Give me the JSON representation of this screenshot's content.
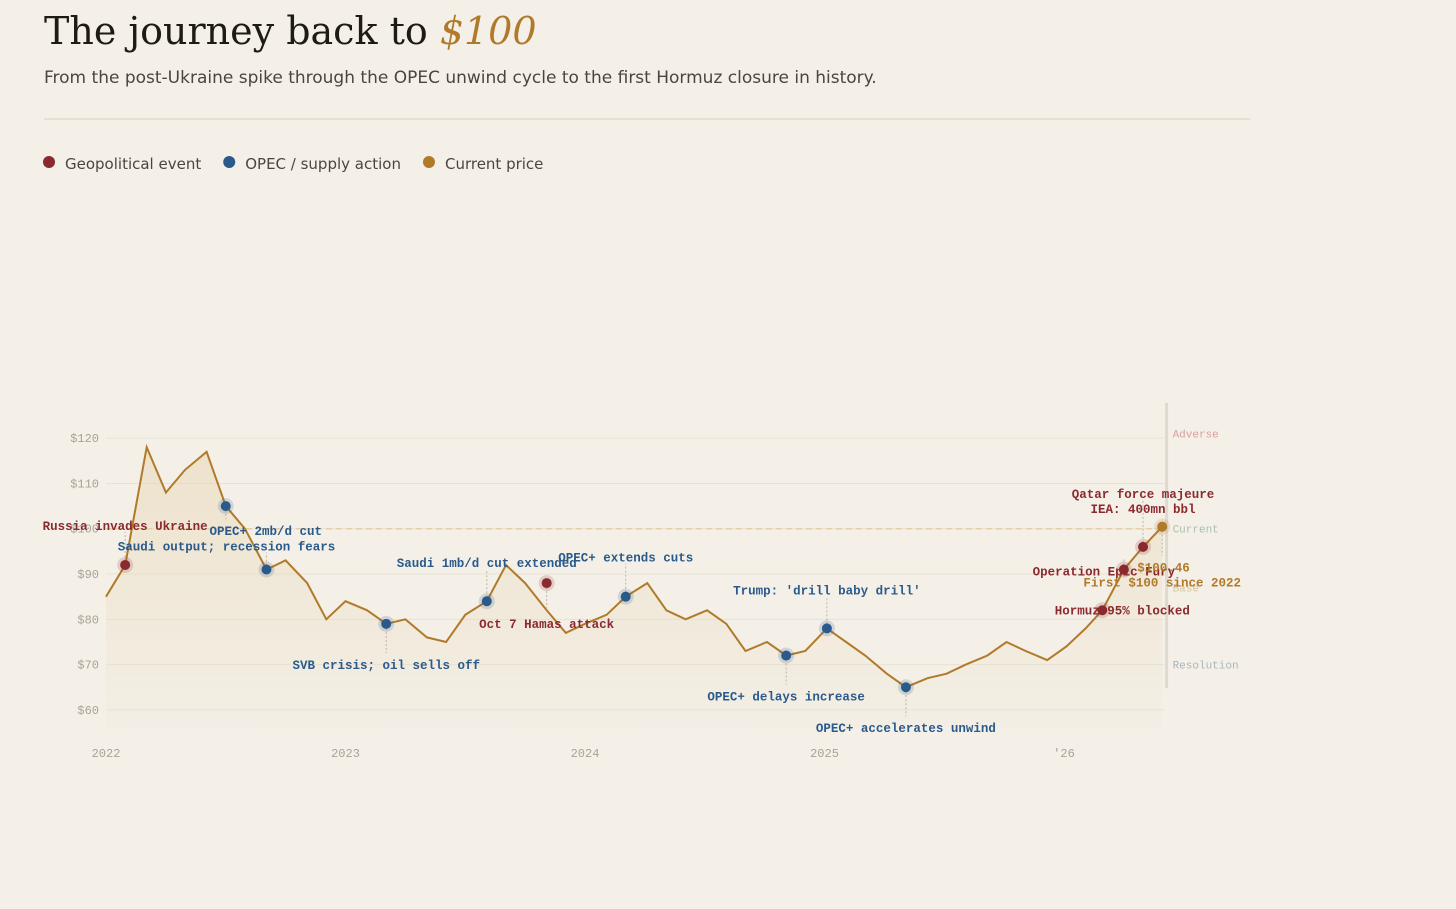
{
  "chart_data": {
    "type": "line",
    "title": {
      "text": "The journey back to",
      "highlight": "$100"
    },
    "subtitle": "From the post-Ukraine spike through the OPEC unwind cycle to the first Hormuz closure in history.",
    "x": [
      2022.0,
      2022.08,
      2022.17,
      2022.25,
      2022.33,
      2022.42,
      2022.5,
      2022.58,
      2022.67,
      2022.75,
      2022.84,
      2022.92,
      2023.0,
      2023.09,
      2023.17,
      2023.25,
      2023.34,
      2023.42,
      2023.5,
      2023.59,
      2023.67,
      2023.75,
      2023.84,
      2023.92,
      2024.0,
      2024.09,
      2024.17,
      2024.26,
      2024.34,
      2024.42,
      2024.51,
      2024.59,
      2024.67,
      2024.76,
      2024.84,
      2024.92,
      2025.01,
      2025.09,
      2025.17,
      2025.26,
      2025.34,
      2025.43,
      2025.51,
      2025.59,
      2025.68,
      2025.76,
      2025.84,
      2025.93,
      2026.01,
      2026.09,
      2026.16,
      2026.25,
      2026.33,
      2026.41
    ],
    "values": [
      85,
      92,
      118,
      108,
      113,
      117,
      105,
      100,
      91,
      93,
      88,
      80,
      84,
      82,
      79,
      80,
      76,
      75,
      81,
      84,
      92,
      88,
      82,
      77,
      79,
      81,
      85,
      88,
      82,
      80,
      82,
      79,
      73,
      75,
      72,
      73,
      78,
      75,
      72,
      68,
      65,
      67,
      68,
      70,
      72,
      75,
      73,
      71,
      74,
      78,
      82,
      91,
      96,
      100.46
    ],
    "color": "#b07a2a",
    "xlim": [
      2022,
      2026.42
    ],
    "ylim": [
      56,
      126
    ],
    "xticks": [
      2022,
      2023,
      2024,
      2025,
      {
        "value": 2026,
        "label": "'26"
      }
    ],
    "yticks": [
      {
        "value": 60,
        "label": "$60"
      },
      {
        "value": 70,
        "label": "$70"
      },
      {
        "value": 80,
        "label": "$80"
      },
      {
        "value": 90,
        "label": "$90"
      },
      {
        "value": 100,
        "label": "$100"
      },
      {
        "value": 110,
        "label": "$110"
      },
      {
        "value": 120,
        "label": "$120"
      }
    ],
    "grid": true,
    "reference_line": 100,
    "series": [
      {
        "name": "Geopolitical event",
        "color": "#8b2a2e",
        "points": [
          {
            "x": 2022.08,
            "value": 92,
            "label": "Russia invades Ukraine"
          },
          {
            "x": 2023.84,
            "value": 88,
            "label": "Oct 7 Hamas attack"
          },
          {
            "x": 2026.16,
            "value": 82,
            "label": "Hormuz 95% blocked"
          },
          {
            "x": 2026.25,
            "value": 91,
            "label": "Operation Epic Fury"
          },
          {
            "x": 2026.33,
            "value": 96,
            "label": "Qatar force majeure",
            "sublabel": "IEA: 400mn bbl"
          }
        ]
      },
      {
        "name": "OPEC / supply action",
        "color": "#2a5a8c",
        "points": [
          {
            "x": 2022.5,
            "value": 105,
            "label": "OPEC+ 2mb/d cut"
          },
          {
            "x": 2022.67,
            "value": 91,
            "label": "Saudi output; recession fears"
          },
          {
            "x": 2023.17,
            "value": 79,
            "label": "SVB crisis; oil sells off"
          },
          {
            "x": 2023.59,
            "value": 84,
            "label": "Saudi 1mb/d cut extended"
          },
          {
            "x": 2024.17,
            "value": 85,
            "label": "OPEC+ extends cuts"
          },
          {
            "x": 2024.84,
            "value": 72,
            "label": "OPEC+ delays increase"
          },
          {
            "x": 2025.01,
            "value": 78,
            "label": "Trump: 'drill baby drill'"
          },
          {
            "x": 2025.34,
            "value": 65,
            "label": "OPEC+ accelerates unwind"
          }
        ]
      },
      {
        "name": "Current price",
        "color": "#b07a2a",
        "points": [
          {
            "x": 2026.41,
            "value": 100.46,
            "value_label": "$100.46",
            "sublabel": "First $100 since 2022"
          }
        ]
      }
    ],
    "scenarios": [
      {
        "label": "Adverse",
        "value": 121,
        "color": "#d9a0a0"
      },
      {
        "label": "Current",
        "value": 100,
        "color": "#a9bfae"
      },
      {
        "label": "Base",
        "value": 87,
        "color": "#d8c3a0"
      },
      {
        "label": "Resolution",
        "value": 70,
        "color": "#aab4bd"
      }
    ]
  }
}
